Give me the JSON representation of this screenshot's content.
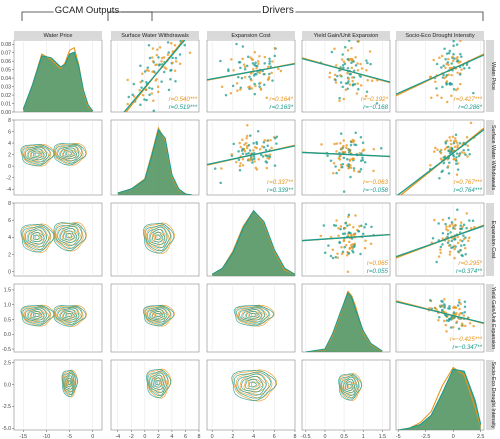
{
  "groups": {
    "outputs": "GCAM Outputs",
    "drivers": "Drivers"
  },
  "colors": {
    "orange": "#e8941a",
    "teal": "#1a9c8f",
    "fill": "#4a8f5a",
    "strip": "#d9d9d9",
    "grid": "#e8e8e8",
    "panel_border": "#888888"
  },
  "chart_data": {
    "type": "scatter",
    "title": "",
    "variables": [
      "Water Price",
      "Surface Water Withdrawals",
      "Expansion Cost",
      "Yield Gain/Unit Expansion",
      "Socio-Eco Drought Intensity"
    ],
    "series": [
      {
        "name": "",
        "color": "#e8941a"
      },
      {
        "name": "",
        "color": "#1a9c8f"
      }
    ],
    "col_axes": [
      {
        "lim": [
          -17,
          2
        ],
        "ticks": [
          -15,
          -10,
          -5,
          0
        ]
      },
      {
        "lim": [
          -5,
          8
        ],
        "ticks": [
          -4,
          -2,
          0,
          2,
          4,
          6,
          8
        ]
      },
      {
        "lim": [
          -0.5,
          8
        ],
        "ticks": [
          0,
          2,
          4,
          6,
          8
        ]
      },
      {
        "lim": [
          -0.6,
          1.7
        ],
        "ticks": [
          -0.5,
          0,
          0.5,
          1,
          1.5
        ]
      },
      {
        "lim": [
          -5.2,
          2.8
        ],
        "ticks": [
          -5,
          -2.5,
          0,
          2.5
        ]
      }
    ],
    "row_axes": [
      {
        "lim": [
          0,
          0.085
        ],
        "ticks": [
          0,
          0.01,
          0.02,
          0.03,
          0.04,
          0.05,
          0.06,
          0.07,
          0.08
        ],
        "tick_labels": [
          "0.00",
          "0.01",
          "0.02",
          "0.03",
          "0.04",
          "0.05",
          "0.06",
          "0.07",
          "0.08"
        ]
      },
      {
        "lim": [
          -5,
          8
        ],
        "ticks": [
          -4,
          -2,
          0,
          2,
          4,
          6,
          8
        ],
        "tick_labels": [
          "-4",
          "-2",
          "0",
          "2",
          "4",
          "6",
          "8"
        ]
      },
      {
        "lim": [
          -0.5,
          8
        ],
        "ticks": [
          0,
          2,
          4,
          6,
          8
        ],
        "tick_labels": [
          "0",
          "2",
          "4",
          "6",
          "8"
        ]
      },
      {
        "lim": [
          -0.6,
          1.7
        ],
        "ticks": [
          -0.5,
          0,
          0.5,
          1,
          1.5
        ],
        "tick_labels": [
          "-0.5",
          "0.0",
          "0.5",
          "1.0",
          "1.5"
        ]
      },
      {
        "lim": [
          -5.2,
          2.8
        ],
        "ticks": [
          -5,
          -2.5,
          0,
          2.5
        ],
        "tick_labels": [
          "-5.0",
          "-2.5",
          "0.0",
          "2.5"
        ]
      }
    ],
    "diagonal_densities": [
      {
        "x": [
          -15,
          -13,
          -11,
          -9,
          -7,
          -6,
          -5,
          -4,
          -3,
          -2,
          -1,
          0
        ],
        "orange": [
          0.003,
          0.03,
          0.064,
          0.058,
          0.048,
          0.054,
          0.068,
          0.071,
          0.052,
          0.022,
          0.006,
          0.001
        ],
        "teal": [
          0.003,
          0.03,
          0.062,
          0.06,
          0.05,
          0.052,
          0.064,
          0.066,
          0.05,
          0.024,
          0.008,
          0.001
        ]
      },
      {
        "x": [
          -4,
          -2,
          0,
          1,
          2,
          3,
          4,
          5,
          6,
          7
        ],
        "orange": [
          0.02,
          0.06,
          0.16,
          0.4,
          0.66,
          0.54,
          0.18,
          0.05,
          0.01,
          0.0
        ],
        "teal": [
          0.02,
          0.06,
          0.15,
          0.38,
          0.64,
          0.56,
          0.2,
          0.06,
          0.01,
          0.0
        ]
      },
      {
        "x": [
          0,
          1,
          2,
          3,
          4,
          5,
          6,
          7,
          8
        ],
        "orange": [
          0.01,
          0.05,
          0.16,
          0.32,
          0.42,
          0.34,
          0.16,
          0.04,
          0.01
        ],
        "teal": [
          0.01,
          0.05,
          0.15,
          0.31,
          0.42,
          0.35,
          0.17,
          0.05,
          0.01
        ]
      },
      {
        "x": [
          -0.5,
          0,
          0.2,
          0.4,
          0.6,
          0.7,
          0.8,
          1.0,
          1.2,
          1.5
        ],
        "orange": [
          0.0,
          0.08,
          0.55,
          1.25,
          2.0,
          1.85,
          1.5,
          0.65,
          0.25,
          0.02
        ],
        "teal": [
          0.0,
          0.1,
          0.6,
          1.3,
          1.95,
          1.8,
          1.4,
          0.7,
          0.28,
          0.03
        ]
      },
      {
        "x": [
          -5,
          -4,
          -3,
          -2,
          -1,
          0,
          1,
          2,
          2.5
        ],
        "orange": [
          0.0,
          0.01,
          0.04,
          0.1,
          0.24,
          0.34,
          0.3,
          0.12,
          0.02
        ],
        "teal": [
          0.0,
          0.01,
          0.03,
          0.08,
          0.2,
          0.33,
          0.32,
          0.16,
          0.03
        ]
      }
    ],
    "correlations": [
      {
        "row": 0,
        "col": 1,
        "orange": "r=0.540***",
        "teal": "r=0.519***"
      },
      {
        "row": 0,
        "col": 2,
        "orange": "r=0.164*",
        "teal": "r=0.163*"
      },
      {
        "row": 0,
        "col": 3,
        "orange": "r=−0.192*",
        "teal": "r=−0.168"
      },
      {
        "row": 0,
        "col": 4,
        "orange": "r=0.427***",
        "teal": "r=0.286*"
      },
      {
        "row": 1,
        "col": 2,
        "orange": "r=0.337**",
        "teal": "r=0.339**"
      },
      {
        "row": 1,
        "col": 3,
        "orange": "r=−0.063",
        "teal": "r=−0.058"
      },
      {
        "row": 1,
        "col": 4,
        "orange": "r=0.767***",
        "teal": "r=0.764***"
      },
      {
        "row": 2,
        "col": 3,
        "orange": "r=0.065",
        "teal": "r=0.055"
      },
      {
        "row": 2,
        "col": 4,
        "orange": "r=0.295*",
        "teal": "r=0.374**"
      },
      {
        "row": 3,
        "col": 4,
        "orange": "r=−0.425***",
        "teal": "r=−0.347**"
      }
    ],
    "scatter_centers": [
      {
        "row": 0,
        "col": 1,
        "x": 2.0,
        "y": 0.048,
        "sx": 2.2,
        "sy": 0.016,
        "slope": 0.0095
      },
      {
        "row": 0,
        "col": 2,
        "x": 4.0,
        "y": 0.048,
        "sx": 1.4,
        "sy": 0.016,
        "slope": 0.0022
      },
      {
        "row": 0,
        "col": 3,
        "x": 0.65,
        "y": 0.048,
        "sx": 0.26,
        "sy": 0.016,
        "slope": -0.012
      },
      {
        "row": 0,
        "col": 4,
        "x": -0.2,
        "y": 0.05,
        "sx": 0.9,
        "sy": 0.014,
        "slope": 0.0058
      },
      {
        "row": 1,
        "col": 2,
        "x": 4.0,
        "y": 2.0,
        "sx": 1.4,
        "sy": 1.6,
        "slope": 0.38
      },
      {
        "row": 1,
        "col": 3,
        "x": 0.65,
        "y": 2.0,
        "sx": 0.26,
        "sy": 1.6,
        "slope": -0.3
      },
      {
        "row": 1,
        "col": 4,
        "x": -0.2,
        "y": 2.0,
        "sx": 0.9,
        "sy": 1.8,
        "slope": 1.45
      },
      {
        "row": 2,
        "col": 3,
        "x": 0.65,
        "y": 4.0,
        "sx": 0.26,
        "sy": 1.4,
        "slope": 0.3
      },
      {
        "row": 2,
        "col": 4,
        "x": -0.2,
        "y": 4.0,
        "sx": 0.9,
        "sy": 1.3,
        "slope": 0.45
      },
      {
        "row": 3,
        "col": 4,
        "x": -0.2,
        "y": 0.65,
        "sx": 0.9,
        "sy": 0.26,
        "slope": -0.09
      }
    ],
    "contour_centers": [
      {
        "row": 1,
        "col": 0,
        "centers": [
          [
            -12,
            2.0
          ],
          [
            -5,
            2.2
          ]
        ],
        "rx": 3.0,
        "ry": 1.6
      },
      {
        "row": 2,
        "col": 0,
        "centers": [
          [
            -12,
            4.0
          ],
          [
            -5,
            4.2
          ]
        ],
        "rx": 3.0,
        "ry": 1.4
      },
      {
        "row": 2,
        "col": 1,
        "centers": [
          [
            2.0,
            4.0
          ]
        ],
        "rx": 1.9,
        "ry": 1.5
      },
      {
        "row": 3,
        "col": 0,
        "centers": [
          [
            -12,
            0.65
          ],
          [
            -5,
            0.65
          ]
        ],
        "rx": 3.0,
        "ry": 0.3
      },
      {
        "row": 3,
        "col": 1,
        "centers": [
          [
            2.0,
            0.65
          ]
        ],
        "rx": 1.9,
        "ry": 0.3
      },
      {
        "row": 3,
        "col": 2,
        "centers": [
          [
            4.0,
            0.65
          ]
        ],
        "rx": 1.6,
        "ry": 0.3
      },
      {
        "row": 4,
        "col": 0,
        "centers": [
          [
            -5,
            0.2
          ]
        ],
        "rx": 1.4,
        "ry": 1.3
      },
      {
        "row": 4,
        "col": 1,
        "centers": [
          [
            2.0,
            0.2
          ]
        ],
        "rx": 1.5,
        "ry": 1.4
      },
      {
        "row": 4,
        "col": 2,
        "centers": [
          [
            4.0,
            0.0
          ]
        ],
        "rx": 1.8,
        "ry": 1.5
      },
      {
        "row": 4,
        "col": 3,
        "centers": [
          [
            0.65,
            -0.2
          ]
        ],
        "rx": 0.25,
        "ry": 1.3
      }
    ]
  }
}
